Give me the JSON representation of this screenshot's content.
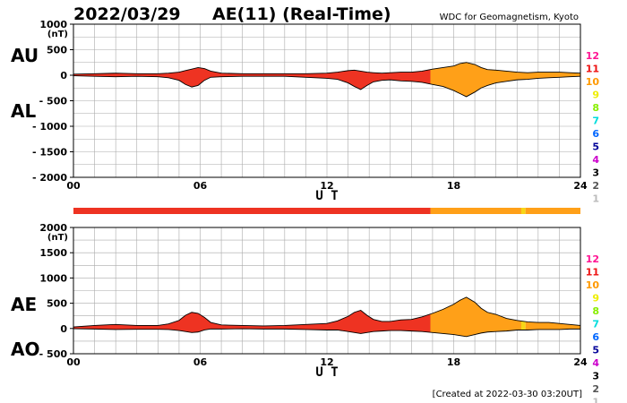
{
  "header": {
    "date": "2022/03/29",
    "title": "AE(11) (Real-Time)",
    "source": "WDC for Geomagnetism, Kyoto"
  },
  "footer": {
    "created": "[Created at 2022-03-30 03:20UT]"
  },
  "colors": {
    "fill_red": "#ee3322",
    "fill_orange": "#ffa018",
    "fill_yellow": "#f6d616",
    "outline": "#000000",
    "grid": "#aaaaaa"
  },
  "station_levels": {
    "labels": [
      "12",
      "11",
      "10",
      "9",
      "8",
      "7",
      "6",
      "5",
      "4",
      "3",
      "2",
      "1"
    ],
    "colors": [
      "#ff1493",
      "#ee1111",
      "#ff9900",
      "#eeee00",
      "#88ee00",
      "#00dddd",
      "#0066ff",
      "#000099",
      "#cc00cc",
      "#000000",
      "#555555",
      "#bbbbbb"
    ]
  },
  "station_bar": {
    "segments": [
      {
        "from": 0,
        "to": 16.9,
        "color": "#ee3322"
      },
      {
        "from": 16.9,
        "to": 21.2,
        "color": "#ffa018"
      },
      {
        "from": 21.2,
        "to": 21.4,
        "color": "#f6d616"
      },
      {
        "from": 21.4,
        "to": 24,
        "color": "#ffa018"
      }
    ]
  },
  "chart_data": [
    {
      "type": "area",
      "id": "au-al",
      "xlabel": "U T",
      "unit": "(nT)",
      "side_labels": [
        "AU",
        "AL"
      ],
      "xlim": [
        0,
        24
      ],
      "ylim": [
        -2000,
        1000
      ],
      "x_ticks": [
        "00",
        "06",
        "12",
        "18",
        "24"
      ],
      "y_ticks": [
        "1000",
        "500",
        "0",
        "- 500",
        "- 1000",
        "- 1500",
        "- 2000"
      ],
      "grid": true,
      "color_segments": [
        {
          "from": 0,
          "to": 16.9,
          "color": "#ee3322"
        },
        {
          "from": 16.9,
          "to": 24,
          "color": "#ffa018"
        }
      ],
      "series": [
        {
          "name": "AU",
          "x": [
            0,
            1,
            2,
            3,
            4,
            4.5,
            5,
            5.3,
            5.6,
            5.9,
            6.2,
            6.5,
            7,
            8,
            9,
            10,
            11,
            12,
            12.5,
            13,
            13.3,
            13.6,
            13.9,
            14.2,
            14.6,
            15,
            15.5,
            16,
            16.5,
            17,
            17.5,
            18,
            18.3,
            18.6,
            19,
            19.3,
            19.6,
            20,
            20.5,
            21,
            21.5,
            22,
            22.5,
            23,
            23.5,
            24
          ],
          "values": [
            20,
            30,
            40,
            30,
            30,
            40,
            60,
            90,
            120,
            150,
            130,
            80,
            40,
            30,
            30,
            30,
            30,
            40,
            60,
            90,
            100,
            80,
            60,
            50,
            40,
            50,
            60,
            60,
            80,
            120,
            150,
            180,
            230,
            250,
            210,
            150,
            110,
            100,
            80,
            60,
            50,
            60,
            60,
            60,
            50,
            40
          ]
        },
        {
          "name": "AL",
          "x": [
            0,
            1,
            2,
            3,
            4,
            4.5,
            5,
            5.3,
            5.6,
            5.9,
            6.2,
            6.5,
            7,
            8,
            9,
            10,
            11,
            12,
            12.5,
            13,
            13.3,
            13.6,
            13.9,
            14.2,
            14.6,
            15,
            15.5,
            16,
            16.5,
            17,
            17.5,
            18,
            18.3,
            18.6,
            19,
            19.3,
            19.6,
            20,
            20.5,
            21,
            21.5,
            22,
            22.5,
            23,
            23.5,
            24
          ],
          "values": [
            -10,
            -20,
            -30,
            -20,
            -30,
            -50,
            -100,
            -180,
            -230,
            -200,
            -100,
            -40,
            -30,
            -20,
            -20,
            -20,
            -40,
            -60,
            -80,
            -150,
            -220,
            -280,
            -200,
            -130,
            -100,
            -90,
            -110,
            -120,
            -140,
            -180,
            -220,
            -300,
            -360,
            -420,
            -330,
            -250,
            -200,
            -150,
            -120,
            -90,
            -80,
            -60,
            -50,
            -40,
            -30,
            -20
          ]
        }
      ]
    },
    {
      "type": "area",
      "id": "ae-ao",
      "xlabel": "U T",
      "unit": "(nT)",
      "side_labels": [
        "AE",
        "AO"
      ],
      "xlim": [
        0,
        24
      ],
      "ylim": [
        -500,
        2000
      ],
      "x_ticks": [
        "00",
        "06",
        "12",
        "18",
        "24"
      ],
      "y_ticks": [
        "2000",
        "1500",
        "1000",
        "500",
        "0",
        "- 500"
      ],
      "grid": true,
      "color_segments": [
        {
          "from": 0,
          "to": 16.9,
          "color": "#ee3322"
        },
        {
          "from": 16.9,
          "to": 21.2,
          "color": "#ffa018"
        },
        {
          "from": 21.2,
          "to": 21.4,
          "color": "#f6d616"
        },
        {
          "from": 21.4,
          "to": 24,
          "color": "#ffa018"
        }
      ],
      "series": [
        {
          "name": "AE",
          "x": [
            0,
            1,
            2,
            3,
            4,
            4.5,
            5,
            5.3,
            5.6,
            5.9,
            6.2,
            6.5,
            7,
            8,
            9,
            10,
            11,
            12,
            12.5,
            13,
            13.3,
            13.6,
            13.9,
            14.2,
            14.6,
            15,
            15.5,
            16,
            16.5,
            17,
            17.5,
            18,
            18.3,
            18.6,
            19,
            19.3,
            19.6,
            20,
            20.5,
            21,
            21.5,
            22,
            22.5,
            23,
            23.5,
            24
          ],
          "values": [
            30,
            60,
            80,
            60,
            60,
            90,
            160,
            260,
            320,
            300,
            220,
            120,
            70,
            60,
            50,
            60,
            80,
            100,
            150,
            240,
            320,
            360,
            260,
            180,
            140,
            140,
            170,
            180,
            230,
            300,
            380,
            480,
            560,
            620,
            520,
            400,
            320,
            280,
            200,
            160,
            130,
            120,
            120,
            100,
            80,
            60
          ]
        },
        {
          "name": "AO",
          "x": [
            0,
            1,
            2,
            3,
            4,
            4.5,
            5,
            5.3,
            5.6,
            5.9,
            6.2,
            6.5,
            7,
            8,
            9,
            10,
            11,
            12,
            12.5,
            13,
            13.3,
            13.6,
            13.9,
            14.2,
            14.6,
            15,
            15.5,
            16,
            16.5,
            17,
            17.5,
            18,
            18.3,
            18.6,
            19,
            19.3,
            19.6,
            20,
            20.5,
            21,
            21.5,
            22,
            22.5,
            23,
            23.5,
            24
          ],
          "values": [
            -5,
            -10,
            -20,
            -15,
            -15,
            -20,
            -40,
            -60,
            -80,
            -70,
            -30,
            -10,
            -10,
            -5,
            -10,
            -10,
            -20,
            -30,
            -30,
            -60,
            -80,
            -100,
            -80,
            -60,
            -50,
            -40,
            -40,
            -50,
            -60,
            -80,
            -100,
            -120,
            -140,
            -160,
            -120,
            -90,
            -70,
            -60,
            -50,
            -30,
            -30,
            -20,
            -20,
            -20,
            -10,
            -10
          ]
        }
      ]
    }
  ]
}
